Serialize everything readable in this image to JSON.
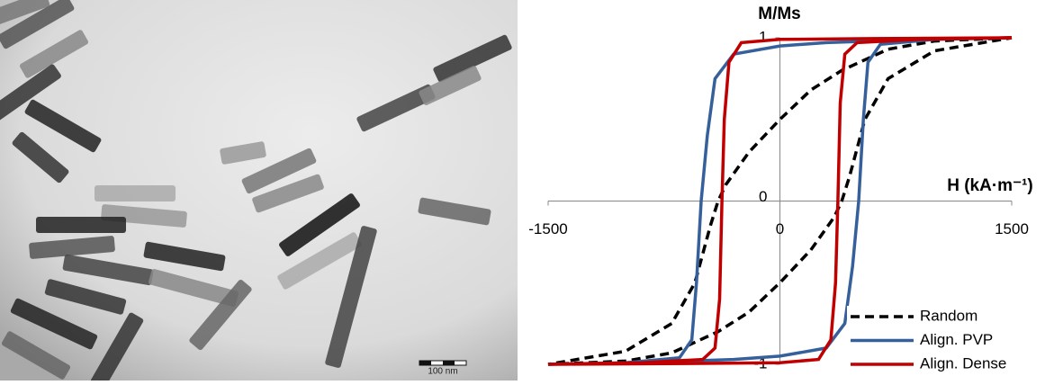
{
  "image": {
    "scale_bar": "100 nm"
  },
  "chart_data": {
    "type": "line",
    "y_label": "M/Ms",
    "x_label": "H (kA·m⁻¹)",
    "xlim": [
      -1500,
      1500
    ],
    "xticks": [
      -1500,
      0,
      1500
    ],
    "ylim": [
      -1,
      1
    ],
    "yticks": [
      -1,
      0,
      1
    ],
    "legend": "lower right",
    "series": [
      {
        "name": "Random",
        "color": "#000000",
        "dash": true,
        "x": [
          1500,
          1000,
          700,
          400,
          200,
          0,
          -200,
          -350,
          -400,
          -450,
          -550,
          -700,
          -1000,
          -1500,
          -1000,
          -700,
          -400,
          -200,
          0,
          200,
          350,
          400,
          450,
          550,
          700,
          1000,
          1500
        ],
        "values": [
          1,
          0.98,
          0.93,
          0.8,
          0.68,
          0.5,
          0.3,
          0.1,
          0,
          -0.15,
          -0.5,
          -0.75,
          -0.92,
          -1,
          -0.98,
          -0.93,
          -0.8,
          -0.68,
          -0.5,
          -0.3,
          -0.1,
          0,
          0.15,
          0.5,
          0.75,
          0.92,
          1
        ]
      },
      {
        "name": "Align. PVP",
        "color": "#35609c",
        "dash": false,
        "x": [
          1500,
          900,
          600,
          300,
          0,
          -300,
          -420,
          -470,
          -510,
          -540,
          -570,
          -650,
          -1000,
          -1500,
          -900,
          -600,
          -300,
          0,
          300,
          420,
          470,
          510,
          540,
          570,
          650,
          1000,
          1500
        ],
        "values": [
          1,
          0.99,
          0.98,
          0.97,
          0.95,
          0.9,
          0.75,
          0.4,
          0,
          -0.5,
          -0.85,
          -0.96,
          -0.99,
          -1,
          -0.99,
          -0.98,
          -0.97,
          -0.95,
          -0.9,
          -0.75,
          -0.4,
          0,
          0.5,
          0.85,
          0.96,
          0.99,
          1
        ]
      },
      {
        "name": "Align. Dense",
        "color": "#c00000",
        "dash": false,
        "x": [
          1500,
          600,
          0,
          -250,
          -330,
          -360,
          -375,
          -390,
          -420,
          -500,
          -900,
          -1500,
          -600,
          0,
          250,
          330,
          360,
          375,
          390,
          420,
          500,
          900,
          1500
        ],
        "values": [
          1,
          0.995,
          0.99,
          0.97,
          0.85,
          0.5,
          0,
          -0.6,
          -0.9,
          -0.97,
          -0.99,
          -1,
          -0.995,
          -0.99,
          -0.97,
          -0.85,
          -0.5,
          0,
          0.6,
          0.9,
          0.97,
          0.99,
          1
        ]
      }
    ]
  }
}
